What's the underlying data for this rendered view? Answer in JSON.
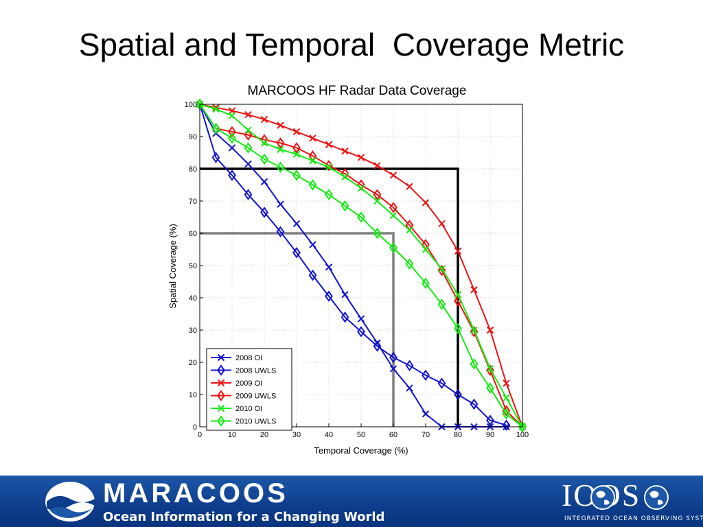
{
  "slide": {
    "title": "Spatial and Temporal  Coverage Metric"
  },
  "footer": {
    "brand": "MARACOOS",
    "tagline": "Ocean Information for a Changing World",
    "partner_logo": "IOOS",
    "partner_subtitle": "INTEGRATED OCEAN OBSERVING SYSTEM",
    "logo_icon": "wave-globe-icon",
    "colors": {
      "band": "#0d3d8c",
      "text": "#ffffff"
    }
  },
  "chart_data": {
    "type": "line",
    "title": "MARCOOS HF Radar Data Coverage",
    "xlabel": "Temporal Coverage (%)",
    "ylabel": "Spatial Coverage (%)",
    "xlim": [
      0,
      100
    ],
    "ylim": [
      0,
      100
    ],
    "xticks": [
      0,
      10,
      20,
      30,
      40,
      50,
      60,
      70,
      80,
      90,
      100
    ],
    "yticks": [
      0,
      10,
      20,
      30,
      40,
      50,
      60,
      70,
      80,
      90,
      100
    ],
    "grid": true,
    "legend": "bottom-left",
    "series": [
      {
        "name": "2008 OI",
        "color": "#1010d8",
        "marker": "x",
        "x": [
          0,
          5,
          10,
          15,
          20,
          25,
          30,
          35,
          40,
          45,
          50,
          55,
          60,
          65,
          70,
          75,
          80,
          85,
          90,
          95
        ],
        "y": [
          100,
          91,
          86.5,
          81.5,
          76,
          69,
          63,
          56.5,
          49.5,
          41,
          33.5,
          26,
          18,
          12,
          4,
          0,
          0,
          0,
          0,
          0
        ]
      },
      {
        "name": "2008 UWLS",
        "color": "#1010d8",
        "marker": "diamond",
        "x": [
          0,
          5,
          10,
          15,
          20,
          25,
          30,
          35,
          40,
          45,
          50,
          55,
          60,
          65,
          70,
          75,
          80,
          85,
          90,
          95
        ],
        "y": [
          100,
          83.5,
          78,
          72,
          66.5,
          60.5,
          54,
          47,
          40.5,
          34,
          29.5,
          25,
          21.5,
          19,
          16,
          13.5,
          10,
          7,
          2,
          0.5
        ]
      },
      {
        "name": "2009 OI",
        "color": "#ee1111",
        "marker": "x",
        "x": [
          0,
          5,
          10,
          15,
          20,
          25,
          30,
          35,
          40,
          45,
          50,
          55,
          60,
          65,
          70,
          75,
          80,
          85,
          90,
          95,
          100
        ],
        "y": [
          100,
          99,
          98,
          96.8,
          95.3,
          93.5,
          91.5,
          89.5,
          87.5,
          85.5,
          83.5,
          81,
          78,
          74.5,
          69.5,
          63,
          54.5,
          42.5,
          30,
          13.5,
          0
        ]
      },
      {
        "name": "2009 UWLS",
        "color": "#ee1111",
        "marker": "diamond",
        "x": [
          0,
          5,
          10,
          15,
          20,
          25,
          30,
          35,
          40,
          45,
          50,
          55,
          60,
          65,
          70,
          75,
          80,
          85,
          90,
          95,
          100
        ],
        "y": [
          100,
          92.5,
          91.5,
          90.5,
          89,
          88,
          86.5,
          84,
          81,
          78.5,
          75,
          72,
          68,
          62.5,
          56.5,
          48.5,
          39,
          29.5,
          17.5,
          5,
          0
        ]
      },
      {
        "name": "2010 OI",
        "color": "#11ee11",
        "marker": "x",
        "x": [
          0,
          5,
          10,
          15,
          20,
          25,
          30,
          35,
          40,
          45,
          50,
          55,
          60,
          65,
          70,
          75,
          80,
          85,
          90,
          95,
          100
        ],
        "y": [
          100,
          98.5,
          96.5,
          92,
          88,
          86,
          84.5,
          82.5,
          80.5,
          77.5,
          74,
          70,
          65.5,
          61,
          55,
          49,
          41,
          30,
          18,
          9,
          0
        ]
      },
      {
        "name": "2010 UWLS",
        "color": "#11ee11",
        "marker": "diamond",
        "x": [
          0,
          5,
          10,
          15,
          20,
          25,
          30,
          35,
          40,
          45,
          50,
          55,
          60,
          65,
          70,
          75,
          80,
          85,
          90,
          95,
          100
        ],
        "y": [
          100,
          92.5,
          89.5,
          86.5,
          83,
          80.5,
          78,
          75,
          72,
          68.5,
          65,
          60,
          55.5,
          50.5,
          44.5,
          38,
          30.5,
          19.5,
          12,
          4,
          0
        ]
      }
    ],
    "annotations": [
      {
        "type": "threshold-box",
        "color": "#000000",
        "x": 80,
        "y": 80
      },
      {
        "type": "threshold-box",
        "color": "#808080",
        "x": 60,
        "y": 60
      }
    ]
  }
}
